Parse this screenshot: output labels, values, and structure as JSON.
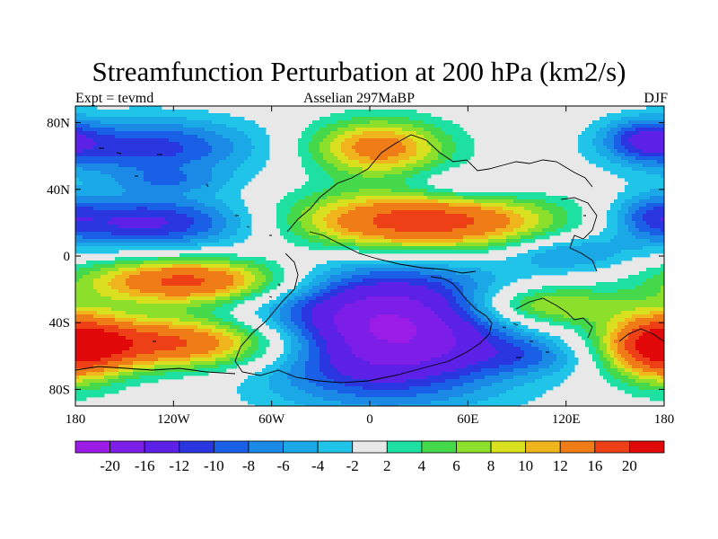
{
  "title": "Streamfunction Perturbation at 200 hPa (km2/s)",
  "left_string": "Expt = tevmd",
  "center_string": "Asselian 297MaBP",
  "right_string": "DJF",
  "map": {
    "lon_range": [
      -180,
      180
    ],
    "lat_range": [
      -90,
      90
    ],
    "x_ticks": [
      {
        "lon": -180,
        "label": "180"
      },
      {
        "lon": -120,
        "label": "120W"
      },
      {
        "lon": -60,
        "label": "60W"
      },
      {
        "lon": 0,
        "label": "0"
      },
      {
        "lon": 60,
        "label": "60E"
      },
      {
        "lon": 120,
        "label": "120E"
      },
      {
        "lon": 180,
        "label": "180"
      }
    ],
    "y_ticks": [
      {
        "lat": 80,
        "label": "80N"
      },
      {
        "lat": 40,
        "label": "40N"
      },
      {
        "lat": 0,
        "label": "0"
      },
      {
        "lat": -40,
        "label": "40S"
      },
      {
        "lat": -80,
        "label": "80S"
      }
    ],
    "anomalies": [
      {
        "lon": -135,
        "lat": 65,
        "amp": -11,
        "rx": 48,
        "ry": 13
      },
      {
        "lon": -120,
        "lat": 45,
        "amp": -4,
        "rx": 25,
        "ry": 5
      },
      {
        "lon": -135,
        "lat": 20,
        "amp": -13,
        "rx": 52,
        "ry": 12
      },
      {
        "lon": 5,
        "lat": 65,
        "amp": 14,
        "rx": 30,
        "ry": 12
      },
      {
        "lon": 30,
        "lat": 20,
        "amp": 20,
        "rx": 60,
        "ry": 13
      },
      {
        "lon": 60,
        "lat": 42,
        "amp": -5,
        "rx": 30,
        "ry": 7
      },
      {
        "lon": 168,
        "lat": 70,
        "amp": -9,
        "rx": 18,
        "ry": 9
      },
      {
        "lon": 172,
        "lat": 25,
        "amp": -5,
        "rx": 15,
        "ry": 9
      },
      {
        "lon": 120,
        "lat": 2,
        "amp": -7,
        "rx": 28,
        "ry": 8
      },
      {
        "lon": -110,
        "lat": -15,
        "amp": 18,
        "rx": 45,
        "ry": 10
      },
      {
        "lon": -120,
        "lat": -52,
        "amp": 18,
        "rx": 58,
        "ry": 11
      },
      {
        "lon": 10,
        "lat": -45,
        "amp": -22,
        "rx": 55,
        "ry": 28
      },
      {
        "lon": 105,
        "lat": -30,
        "amp": 11,
        "rx": 33,
        "ry": 9
      },
      {
        "lon": 100,
        "lat": -60,
        "amp": -5,
        "rx": 25,
        "ry": 8
      },
      {
        "lon": 178,
        "lat": -55,
        "amp": 17,
        "rx": 22,
        "ry": 15
      }
    ]
  },
  "colorbar": {
    "labels": [
      "-20",
      "-16",
      "-12",
      "-10",
      "-8",
      "-6",
      "-4",
      "-2",
      "2",
      "4",
      "6",
      "8",
      "10",
      "12",
      "16",
      "20"
    ],
    "levels": [
      -20,
      -16,
      -12,
      -10,
      -8,
      -6,
      -4,
      -2,
      2,
      4,
      6,
      8,
      10,
      12,
      16,
      20
    ],
    "colors": [
      "#9b1ce6",
      "#7c1ee8",
      "#5c20e6",
      "#2a36e0",
      "#1a60e6",
      "#1a8ae6",
      "#1aa8e6",
      "#20c4e8",
      "#e8e8e8",
      "#1ee0a0",
      "#44d84a",
      "#8ce02c",
      "#d8e020",
      "#f0b41c",
      "#f07c18",
      "#ee4016",
      "#e00808"
    ]
  }
}
